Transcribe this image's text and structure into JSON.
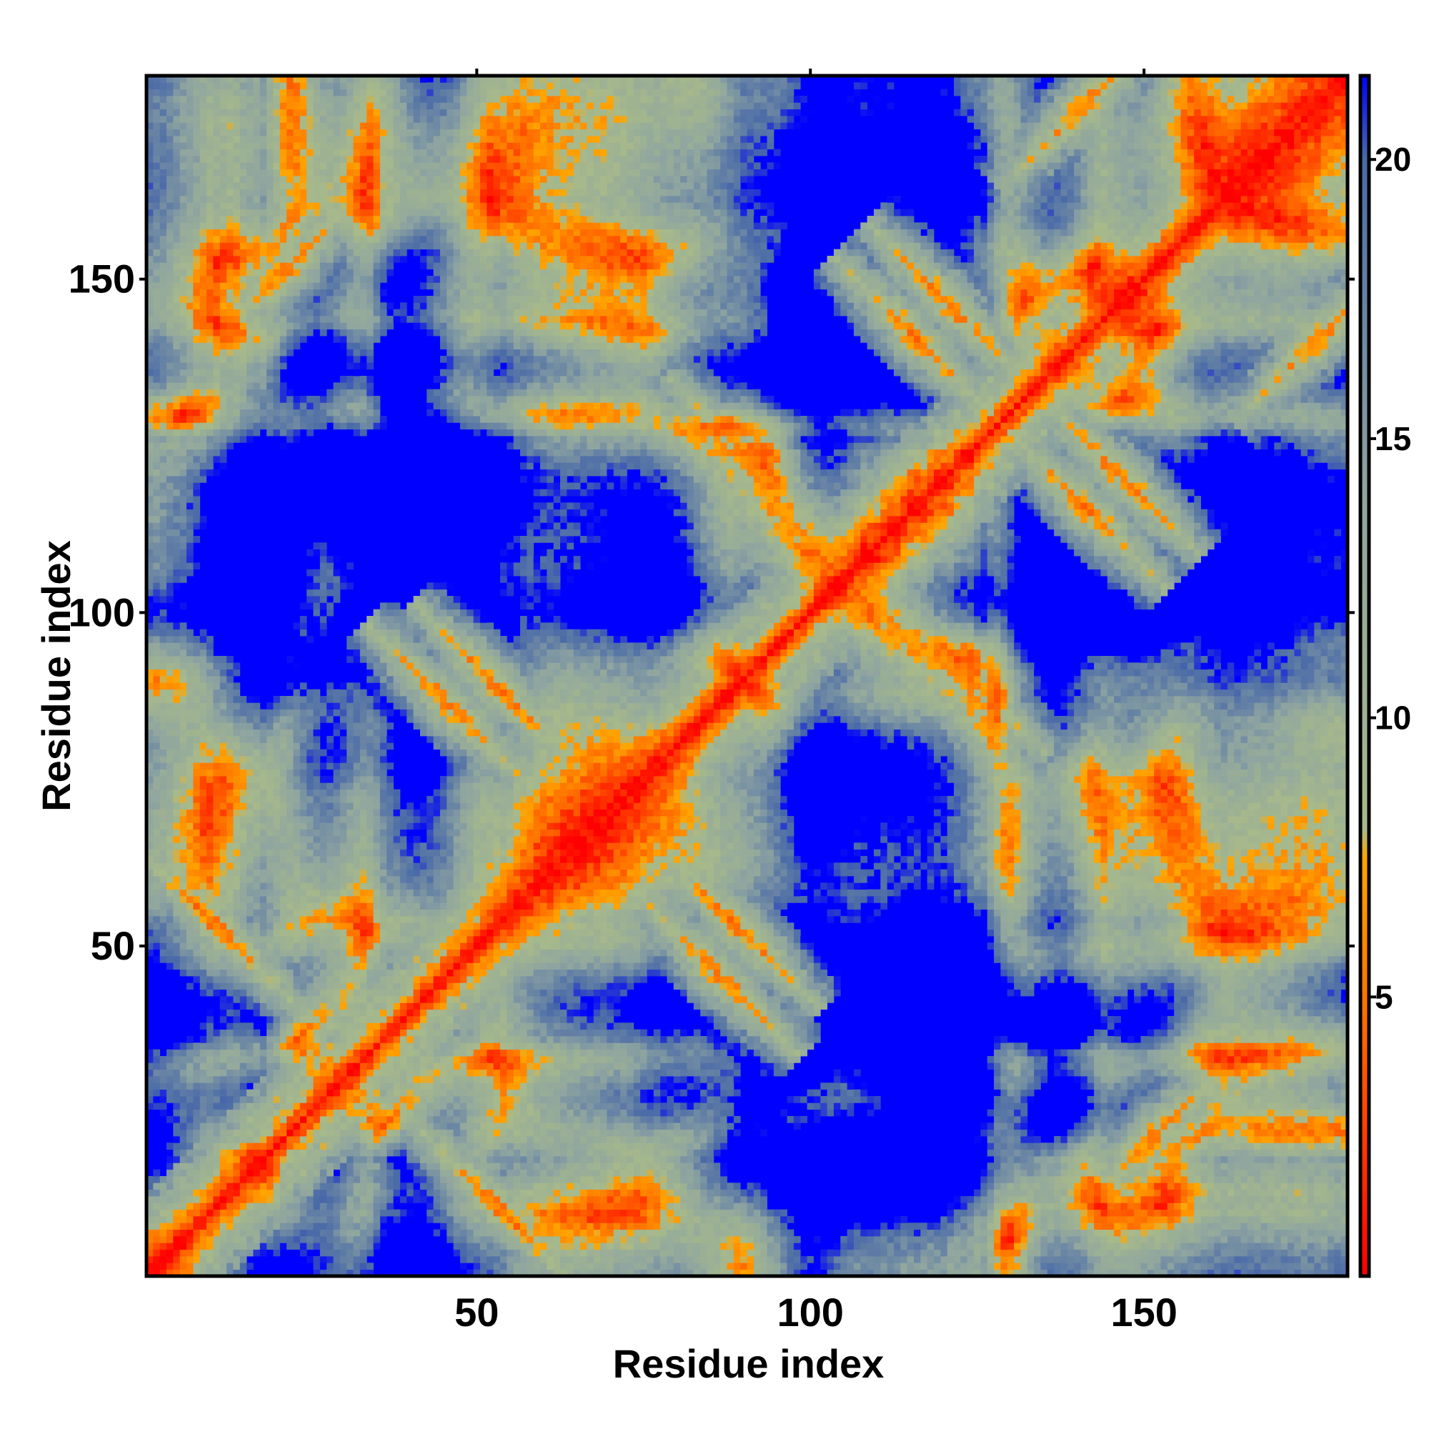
{
  "chart_data": {
    "type": "heatmap",
    "title": "",
    "xlabel": "Residue index",
    "ylabel": "Residue index",
    "x_range": [
      1,
      180
    ],
    "y_range": [
      1,
      180
    ],
    "x_ticks": [
      50,
      100,
      150
    ],
    "x_tick_labels": [
      "50",
      "100",
      "150"
    ],
    "y_ticks": [
      50,
      100,
      150
    ],
    "y_tick_labels": [
      "50",
      "100",
      "150"
    ],
    "n_residues": 180,
    "description_of_values": "Symmetric inter-residue distance matrix; diagonal has smallest values, background saturated at the maximum.",
    "colorbar": {
      "range": [
        0,
        21.5
      ],
      "ticks": [
        5,
        10,
        15,
        20
      ],
      "tick_labels": [
        "5",
        "10",
        "15",
        "20"
      ],
      "colors": [
        {
          "value": 0,
          "color": "#ff0000"
        },
        {
          "value": 4.5,
          "color": "#ff6a00"
        },
        {
          "value": 7.5,
          "color": "#ffa500"
        },
        {
          "value": 8.0,
          "color": "#a8ba8a"
        },
        {
          "value": 14.0,
          "color": "#8fa5a0"
        },
        {
          "value": 20.0,
          "color": "#4a6aa8"
        },
        {
          "value": 21.5,
          "color": "#0000ff"
        }
      ]
    },
    "background_color": "#0000ff",
    "secondary_structure_features": {
      "antiparallel_contacts": [
        {
          "i": 10,
          "j": 52
        },
        {
          "i": 45,
          "j": 85
        },
        {
          "i": 52,
          "j": 88
        },
        {
          "i": 90,
          "j": 122
        },
        {
          "i": 115,
          "j": 140
        },
        {
          "i": 120,
          "j": 145
        },
        {
          "i": 145,
          "j": 25
        }
      ],
      "parallel_contacts": [
        {
          "i": 20,
          "j": 150
        },
        {
          "i": 140,
          "j": 175
        },
        {
          "i": 160,
          "j": 130
        }
      ]
    },
    "grid": false,
    "legend": "colorbar-right"
  }
}
